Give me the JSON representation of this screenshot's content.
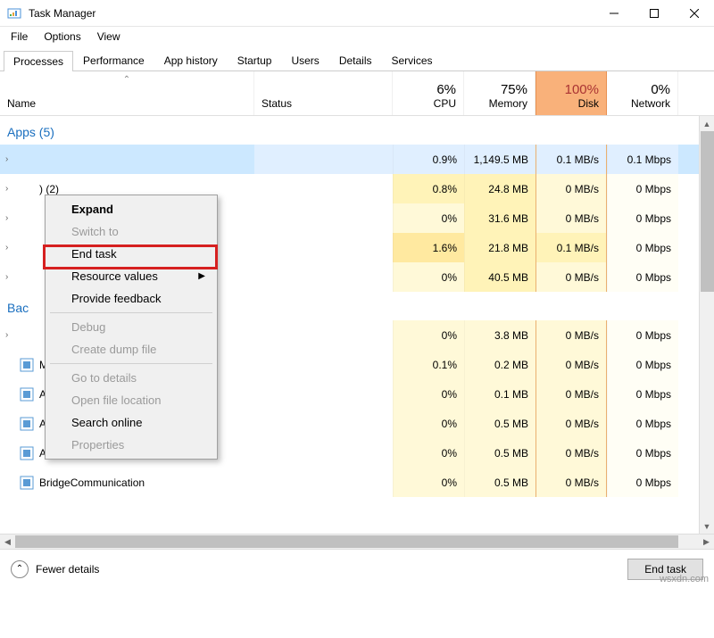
{
  "window": {
    "title": "Task Manager"
  },
  "menubar": [
    "File",
    "Options",
    "View"
  ],
  "tabs": [
    "Processes",
    "Performance",
    "App history",
    "Startup",
    "Users",
    "Details",
    "Services"
  ],
  "active_tab": 0,
  "columns": {
    "name": "Name",
    "status": "Status",
    "metrics": [
      {
        "pct": "6%",
        "label": "CPU",
        "hot": false
      },
      {
        "pct": "75%",
        "label": "Memory",
        "hot": false
      },
      {
        "pct": "100%",
        "label": "Disk",
        "hot": true
      },
      {
        "pct": "0%",
        "label": "Network",
        "hot": false
      }
    ]
  },
  "groups": {
    "apps": "Apps (5)",
    "background": "Bac"
  },
  "rows": [
    {
      "group": "apps",
      "selected": true,
      "expand": true,
      "name": "",
      "cpu": "0.9%",
      "cpu_h": 2,
      "mem": "1,149.5 MB",
      "mem_h": 4,
      "disk": "0.1 MB/s",
      "disk_h": 2,
      "net": "0.1 Mbps",
      "net_h": 1
    },
    {
      "group": "apps",
      "expand": true,
      "tail": ") (2)",
      "cpu": "0.8%",
      "cpu_h": 2,
      "mem": "24.8 MB",
      "mem_h": 2,
      "disk": "0 MB/s",
      "disk_h": 1,
      "net": "0 Mbps",
      "net_h": 0
    },
    {
      "group": "apps",
      "expand": true,
      "name": "",
      "cpu": "0%",
      "cpu_h": 1,
      "mem": "31.6 MB",
      "mem_h": 2,
      "disk": "0 MB/s",
      "disk_h": 1,
      "net": "0 Mbps",
      "net_h": 0
    },
    {
      "group": "apps",
      "expand": true,
      "name": "",
      "cpu": "1.6%",
      "cpu_h": 3,
      "mem": "21.8 MB",
      "mem_h": 2,
      "disk": "0.1 MB/s",
      "disk_h": 2,
      "net": "0 Mbps",
      "net_h": 0
    },
    {
      "group": "apps",
      "expand": true,
      "name": "",
      "cpu": "0%",
      "cpu_h": 1,
      "mem": "40.5 MB",
      "mem_h": 2,
      "disk": "0 MB/s",
      "disk_h": 1,
      "net": "0 Mbps",
      "net_h": 0
    },
    {
      "group": "bg",
      "expand": true,
      "name": "",
      "cpu": "0%",
      "cpu_h": 1,
      "mem": "3.8 MB",
      "mem_h": 1,
      "disk": "0 MB/s",
      "disk_h": 1,
      "net": "0 Mbps",
      "net_h": 0
    },
    {
      "group": "bg",
      "icon": "svc",
      "name_tail": "Mo...",
      "cpu": "0.1%",
      "cpu_h": 1,
      "mem": "0.2 MB",
      "mem_h": 1,
      "disk": "0 MB/s",
      "disk_h": 1,
      "net": "0 Mbps",
      "net_h": 0
    },
    {
      "group": "bg",
      "icon": "svc",
      "name": "AMD External Events Service M...",
      "cpu": "0%",
      "cpu_h": 1,
      "mem": "0.1 MB",
      "mem_h": 1,
      "disk": "0 MB/s",
      "disk_h": 1,
      "net": "0 Mbps",
      "net_h": 0
    },
    {
      "group": "bg",
      "icon": "svc",
      "name": "AppHelperCap",
      "cpu": "0%",
      "cpu_h": 1,
      "mem": "0.5 MB",
      "mem_h": 1,
      "disk": "0 MB/s",
      "disk_h": 1,
      "net": "0 Mbps",
      "net_h": 0
    },
    {
      "group": "bg",
      "icon": "svc",
      "name": "Application Frame Host",
      "cpu": "0%",
      "cpu_h": 1,
      "mem": "0.5 MB",
      "mem_h": 1,
      "disk": "0 MB/s",
      "disk_h": 1,
      "net": "0 Mbps",
      "net_h": 0
    },
    {
      "group": "bg",
      "icon": "svc",
      "name": "BridgeCommunication",
      "cpu": "0%",
      "cpu_h": 1,
      "mem": "0.5 MB",
      "mem_h": 1,
      "disk": "0 MB/s",
      "disk_h": 1,
      "net": "0 Mbps",
      "net_h": 0
    }
  ],
  "context_menu": [
    {
      "label": "Expand",
      "bold": true
    },
    {
      "label": "Switch to",
      "disabled": true
    },
    {
      "label": "End task",
      "highlight": true
    },
    {
      "label": "Resource values",
      "submenu": true
    },
    {
      "label": "Provide feedback"
    },
    {
      "sep": true
    },
    {
      "label": "Debug",
      "disabled": true
    },
    {
      "label": "Create dump file",
      "disabled": true
    },
    {
      "sep": true
    },
    {
      "label": "Go to details",
      "disabled": true
    },
    {
      "label": "Open file location",
      "disabled": true
    },
    {
      "label": "Search online"
    },
    {
      "label": "Properties",
      "disabled": true
    }
  ],
  "footer": {
    "fewer": "Fewer details",
    "endtask": "End task"
  },
  "watermark": "wsxdn.com",
  "colors": {
    "hot_header_bg": "#f9b17a",
    "selected_row": "#cce8ff",
    "group_text": "#1a6fbf",
    "highlight_border": "#d62020"
  }
}
